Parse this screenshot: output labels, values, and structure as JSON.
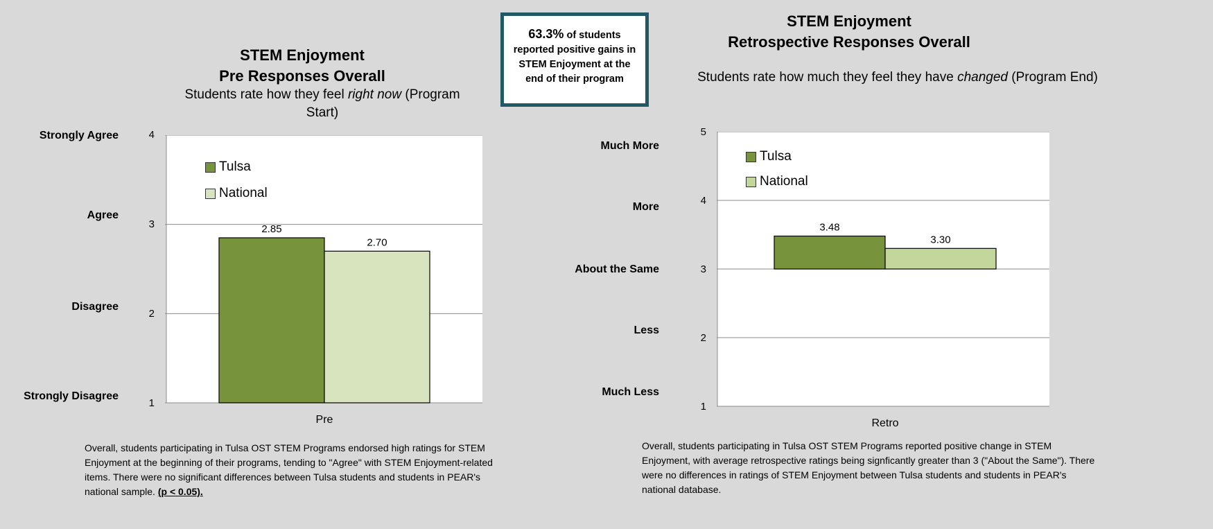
{
  "callout": {
    "percent": "63.3%",
    "text": "of students reported positive gains in STEM Enjoyment at the end of their program"
  },
  "chart_data": [
    {
      "type": "bar",
      "title": "STEM Enjoyment",
      "title_line2": "Pre Responses Overall",
      "subtitle_prefix": "Students rate how they feel ",
      "subtitle_emph": "right now",
      "subtitle_suffix": " (Program Start)",
      "categories": [
        "Pre"
      ],
      "series": [
        {
          "name": "Tulsa",
          "values": [
            2.85
          ],
          "color": "#77933c",
          "label": "2.85"
        },
        {
          "name": "National",
          "values": [
            2.7
          ],
          "color": "#d7e4bd",
          "label": "2.70"
        }
      ],
      "ylim": [
        1,
        4
      ],
      "yticks": [
        "1",
        "2",
        "3",
        "4"
      ],
      "y_word_labels": [
        "Strongly Disagree",
        "Disagree",
        "Agree",
        "Strongly Agree"
      ],
      "grid": true,
      "legend": "top-left",
      "note": "Overall, students participating in Tulsa OST STEM Programs endorsed high ratings for STEM Enjoyment at the beginning of their programs, tending to \"Agree\" with STEM Enjoyment-related items. There were no significant differences between Tulsa students and students in PEAR's national sample.",
      "note_emph": "(p < 0.05)."
    },
    {
      "type": "bar",
      "title": "STEM Enjoyment",
      "title_line2": "Retrospective Responses Overall",
      "subtitle_prefix": "Students rate how much they feel they have ",
      "subtitle_emph": "changed",
      "subtitle_suffix": " (Program End)",
      "categories": [
        "Retro"
      ],
      "series": [
        {
          "name": "Tulsa",
          "values": [
            3.48
          ],
          "color": "#77933c",
          "label": "3.48"
        },
        {
          "name": "National",
          "values": [
            3.3
          ],
          "color": "#c3d69b",
          "label": "3.30"
        }
      ],
      "ylim": [
        1,
        5
      ],
      "yticks": [
        "1",
        "2",
        "3",
        "4",
        "5"
      ],
      "y_word_labels": [
        "Much Less",
        "Less",
        "About the Same",
        "More",
        "Much More"
      ],
      "baseline": 3,
      "grid": true,
      "legend": "top-left",
      "note": "Overall, students participating in Tulsa OST STEM Programs reported positive change in STEM Enjoyment, with average retrospective ratings being signficantly greater than 3 (\"About the Same\"). There were no differences in ratings of STEM Enjoyment between Tulsa students and students in PEAR's national database.",
      "note_emph": ""
    }
  ]
}
